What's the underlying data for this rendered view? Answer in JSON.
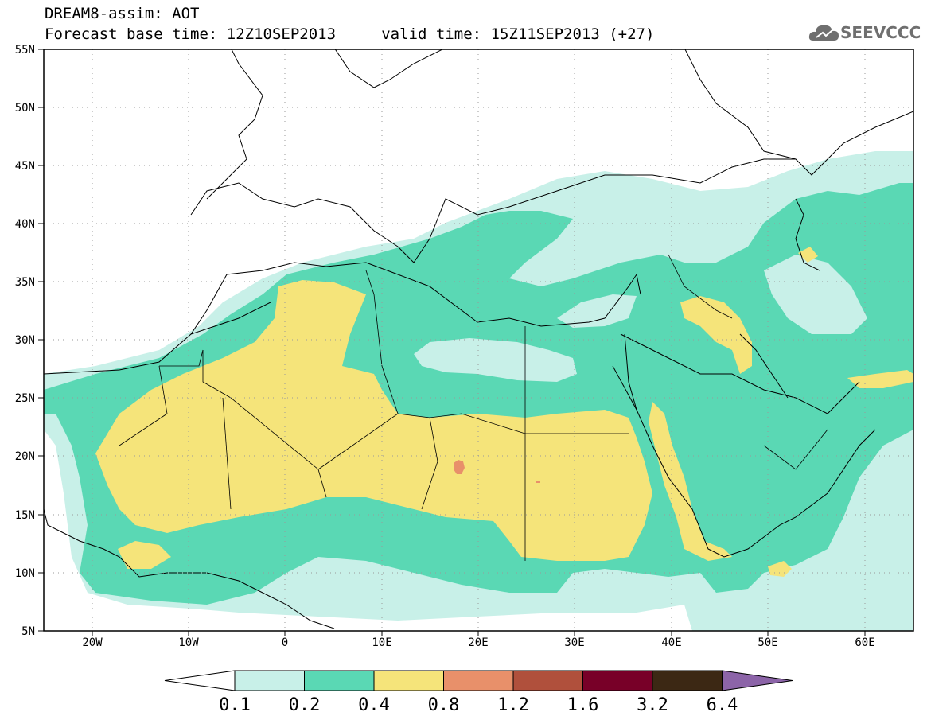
{
  "header": {
    "title_line1": "DREAM8-assim: AOT",
    "title_line2": "Forecast base time: 12Z10SEP2013     valid time: 15Z11SEP2013 (+27)"
  },
  "logo": {
    "text": "SEEVCCC",
    "icon": "cloud-icon",
    "color": "#6f6f6f"
  },
  "map": {
    "projection": "lat-lon",
    "lon_range": [
      -25,
      65
    ],
    "lat_range": [
      5,
      55
    ],
    "lon_ticks": [
      "20W",
      "10W",
      "0",
      "10E",
      "20E",
      "30E",
      "40E",
      "50E",
      "60E"
    ],
    "lat_ticks": [
      "55N",
      "50N",
      "45N",
      "40N",
      "35N",
      "30N",
      "25N",
      "20N",
      "15N",
      "10N",
      "5N"
    ],
    "grid": "dotted"
  },
  "legend": {
    "levels": [
      "0.1",
      "0.2",
      "0.4",
      "0.8",
      "1.2",
      "1.6",
      "3.2",
      "6.4"
    ],
    "colors": [
      "#c8f0e8",
      "#5ad8b4",
      "#f5e47a",
      "#e8906a",
      "#b0503c",
      "#780028",
      "#3c2814",
      "#8c64a8"
    ]
  }
}
